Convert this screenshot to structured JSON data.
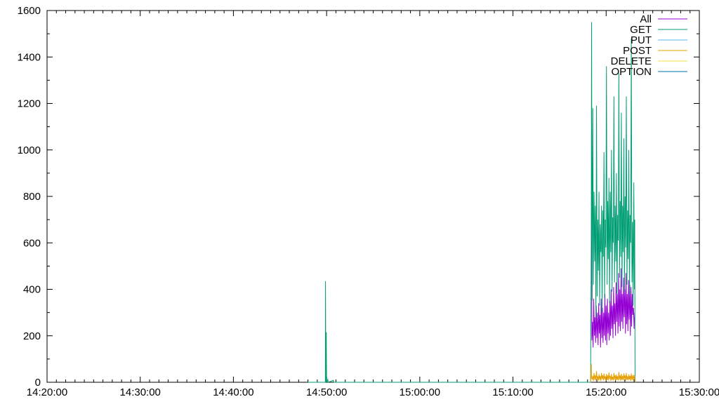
{
  "chart_data": {
    "type": "line",
    "title": "",
    "xlabel": "",
    "ylabel": "",
    "ylim": [
      0,
      1600
    ],
    "yticks": [
      0,
      200,
      400,
      600,
      800,
      1000,
      1200,
      1400,
      1600
    ],
    "xlim": [
      "14:20:00",
      "15:30:00"
    ],
    "xticks": [
      "14:20:00",
      "14:30:00",
      "14:40:00",
      "14:50:00",
      "15:00:00",
      "15:10:00",
      "15:20:00",
      "15:30:00"
    ],
    "grid": false,
    "legend_position": "top-right",
    "series": [
      {
        "name": "All",
        "color": "#9400d3",
        "values": [
          [
            "15:18:26",
            1010
          ],
          [
            "15:18:28",
            180
          ],
          [
            "15:18:32",
            260
          ],
          [
            "15:18:36",
            150
          ],
          [
            "15:18:40",
            360
          ],
          [
            "15:18:44",
            200
          ],
          [
            "15:18:48",
            280
          ],
          [
            "15:18:52",
            170
          ],
          [
            "15:18:56",
            330
          ],
          [
            "15:19:00",
            190
          ],
          [
            "15:19:04",
            300
          ],
          [
            "15:19:08",
            160
          ],
          [
            "15:19:12",
            340
          ],
          [
            "15:19:16",
            210
          ],
          [
            "15:19:20",
            290
          ],
          [
            "15:19:24",
            150
          ],
          [
            "15:19:28",
            360
          ],
          [
            "15:19:32",
            190
          ],
          [
            "15:19:36",
            320
          ],
          [
            "15:19:40",
            170
          ],
          [
            "15:19:44",
            300
          ],
          [
            "15:19:48",
            200
          ],
          [
            "15:19:52",
            380
          ],
          [
            "15:19:56",
            180
          ],
          [
            "15:20:00",
            330
          ],
          [
            "15:20:04",
            160
          ],
          [
            "15:20:08",
            360
          ],
          [
            "15:20:12",
            210
          ],
          [
            "15:20:16",
            300
          ],
          [
            "15:20:20",
            180
          ],
          [
            "15:20:24",
            350
          ],
          [
            "15:20:28",
            200
          ],
          [
            "15:20:32",
            400
          ],
          [
            "15:20:36",
            230
          ],
          [
            "15:20:40",
            330
          ],
          [
            "15:20:44",
            190
          ],
          [
            "15:20:48",
            410
          ],
          [
            "15:20:52",
            250
          ],
          [
            "15:20:56",
            340
          ],
          [
            "15:21:00",
            200
          ],
          [
            "15:21:04",
            430
          ],
          [
            "15:21:08",
            260
          ],
          [
            "15:21:12",
            380
          ],
          [
            "15:21:16",
            210
          ],
          [
            "15:21:20",
            470
          ],
          [
            "15:21:24",
            240
          ],
          [
            "15:21:28",
            400
          ],
          [
            "15:21:32",
            220
          ],
          [
            "15:21:36",
            490
          ],
          [
            "15:21:40",
            260
          ],
          [
            "15:21:44",
            380
          ],
          [
            "15:21:48",
            230
          ],
          [
            "15:21:52",
            450
          ],
          [
            "15:21:56",
            280
          ],
          [
            "15:22:00",
            400
          ],
          [
            "15:22:04",
            210
          ],
          [
            "15:22:08",
            470
          ],
          [
            "15:22:12",
            250
          ],
          [
            "15:22:16",
            380
          ],
          [
            "15:22:20",
            220
          ],
          [
            "15:22:24",
            440
          ],
          [
            "15:22:28",
            270
          ],
          [
            "15:22:32",
            420
          ],
          [
            "15:22:36",
            200
          ],
          [
            "15:22:40",
            410
          ],
          [
            "15:22:44",
            240
          ],
          [
            "15:22:48",
            380
          ],
          [
            "15:22:52",
            290
          ],
          [
            "15:22:56",
            320
          ],
          [
            "15:23:00",
            230
          ],
          [
            "15:23:04",
            300
          ]
        ]
      },
      {
        "name": "GET",
        "color": "#009e73",
        "values": [
          [
            "14:48:00",
            0
          ],
          [
            "14:49:52",
            0
          ],
          [
            "14:49:53",
            435
          ],
          [
            "14:49:55",
            0
          ],
          [
            "14:49:58",
            215
          ],
          [
            "14:50:00",
            0
          ],
          [
            "14:50:08",
            12
          ],
          [
            "14:50:10",
            0
          ],
          [
            "14:50:44",
            8
          ],
          [
            "14:50:46",
            0
          ],
          [
            "15:18:20",
            0
          ],
          [
            "15:18:24",
            600
          ],
          [
            "15:18:26",
            1550
          ],
          [
            "15:18:30",
            350
          ],
          [
            "15:18:34",
            1180
          ],
          [
            "15:18:38",
            420
          ],
          [
            "15:18:42",
            820
          ],
          [
            "15:18:46",
            520
          ],
          [
            "15:18:50",
            760
          ],
          [
            "15:18:54",
            280
          ],
          [
            "15:18:58",
            1190
          ],
          [
            "15:19:02",
            370
          ],
          [
            "15:19:06",
            700
          ],
          [
            "15:19:10",
            480
          ],
          [
            "15:19:14",
            820
          ],
          [
            "15:19:18",
            330
          ],
          [
            "15:19:22",
            680
          ],
          [
            "15:19:26",
            560
          ],
          [
            "15:19:30",
            760
          ],
          [
            "15:19:34",
            300
          ],
          [
            "15:19:38",
            740
          ],
          [
            "15:19:42",
            540
          ],
          [
            "15:19:46",
            990
          ],
          [
            "15:19:50",
            360
          ],
          [
            "15:19:54",
            700
          ],
          [
            "15:19:58",
            580
          ],
          [
            "15:20:02",
            1360
          ],
          [
            "15:20:06",
            420
          ],
          [
            "15:20:10",
            780
          ],
          [
            "15:20:14",
            530
          ],
          [
            "15:20:18",
            880
          ],
          [
            "15:20:22",
            340
          ],
          [
            "15:20:26",
            820
          ],
          [
            "15:20:30",
            560
          ],
          [
            "15:20:34",
            1000
          ],
          [
            "15:20:38",
            390
          ],
          [
            "15:20:42",
            710
          ],
          [
            "15:20:46",
            600
          ],
          [
            "15:20:50",
            1230
          ],
          [
            "15:20:54",
            430
          ],
          [
            "15:20:58",
            760
          ],
          [
            "15:21:02",
            520
          ],
          [
            "15:21:06",
            900
          ],
          [
            "15:21:10",
            380
          ],
          [
            "15:21:14",
            720
          ],
          [
            "15:21:18",
            610
          ],
          [
            "15:21:22",
            1330
          ],
          [
            "15:21:26",
            450
          ],
          [
            "15:21:30",
            780
          ],
          [
            "15:21:34",
            540
          ],
          [
            "15:21:38",
            1160
          ],
          [
            "15:21:42",
            410
          ],
          [
            "15:21:46",
            760
          ],
          [
            "15:21:50",
            560
          ],
          [
            "15:21:54",
            1050
          ],
          [
            "15:21:58",
            390
          ],
          [
            "15:22:02",
            800
          ],
          [
            "15:22:06",
            580
          ],
          [
            "15:22:10",
            1230
          ],
          [
            "15:22:14",
            420
          ],
          [
            "15:22:18",
            740
          ],
          [
            "15:22:22",
            530
          ],
          [
            "15:22:26",
            1000
          ],
          [
            "15:22:30",
            380
          ],
          [
            "15:22:34",
            720
          ],
          [
            "15:22:38",
            600
          ],
          [
            "15:22:42",
            1480
          ],
          [
            "15:22:46",
            430
          ],
          [
            "15:22:50",
            690
          ],
          [
            "15:22:54",
            330
          ],
          [
            "15:22:58",
            860
          ],
          [
            "15:23:02",
            400
          ],
          [
            "15:23:04",
            700
          ],
          [
            "15:23:06",
            0
          ]
        ]
      },
      {
        "name": "PUT",
        "color": "#56b4e9",
        "values": []
      },
      {
        "name": "POST",
        "color": "#e69f00",
        "values": [
          [
            "15:18:20",
            0
          ],
          [
            "15:18:24",
            80
          ],
          [
            "15:18:26",
            20
          ],
          [
            "15:18:30",
            12
          ],
          [
            "15:18:34",
            28
          ],
          [
            "15:18:38",
            5
          ],
          [
            "15:18:42",
            40
          ],
          [
            "15:18:46",
            10
          ],
          [
            "15:18:50",
            30
          ],
          [
            "15:18:54",
            8
          ],
          [
            "15:18:58",
            48
          ],
          [
            "15:19:02",
            12
          ],
          [
            "15:19:06",
            26
          ],
          [
            "15:19:10",
            6
          ],
          [
            "15:19:14",
            35
          ],
          [
            "15:19:18",
            10
          ],
          [
            "15:19:22",
            28
          ],
          [
            "15:19:26",
            5
          ],
          [
            "15:19:30",
            40
          ],
          [
            "15:19:34",
            14
          ],
          [
            "15:19:38",
            30
          ],
          [
            "15:19:42",
            8
          ],
          [
            "15:19:46",
            38
          ],
          [
            "15:19:50",
            12
          ],
          [
            "15:19:54",
            26
          ],
          [
            "15:19:58",
            6
          ],
          [
            "15:20:02",
            36
          ],
          [
            "15:20:06",
            10
          ],
          [
            "15:20:10",
            30
          ],
          [
            "15:20:14",
            8
          ],
          [
            "15:20:18",
            42
          ],
          [
            "15:20:22",
            14
          ],
          [
            "15:20:26",
            28
          ],
          [
            "15:20:30",
            6
          ],
          [
            "15:20:34",
            35
          ],
          [
            "15:20:38",
            10
          ],
          [
            "15:20:42",
            24
          ],
          [
            "15:20:46",
            8
          ],
          [
            "15:20:50",
            40
          ],
          [
            "15:20:54",
            12
          ],
          [
            "15:20:58",
            30
          ],
          [
            "15:21:02",
            6
          ],
          [
            "15:21:06",
            34
          ],
          [
            "15:21:10",
            10
          ],
          [
            "15:21:14",
            26
          ],
          [
            "15:21:18",
            8
          ],
          [
            "15:21:22",
            44
          ],
          [
            "15:21:26",
            12
          ],
          [
            "15:21:30",
            30
          ],
          [
            "15:21:34",
            6
          ],
          [
            "15:21:38",
            36
          ],
          [
            "15:21:42",
            10
          ],
          [
            "15:21:46",
            28
          ],
          [
            "15:21:50",
            8
          ],
          [
            "15:21:54",
            38
          ],
          [
            "15:21:58",
            14
          ],
          [
            "15:22:02",
            30
          ],
          [
            "15:22:06",
            6
          ],
          [
            "15:22:10",
            40
          ],
          [
            "15:22:14",
            10
          ],
          [
            "15:22:18",
            26
          ],
          [
            "15:22:22",
            8
          ],
          [
            "15:22:26",
            34
          ],
          [
            "15:22:30",
            12
          ],
          [
            "15:22:34",
            28
          ],
          [
            "15:22:38",
            6
          ],
          [
            "15:22:42",
            38
          ],
          [
            "15:22:46",
            10
          ],
          [
            "15:22:50",
            30
          ],
          [
            "15:22:54",
            8
          ],
          [
            "15:22:58",
            32
          ],
          [
            "15:23:02",
            12
          ],
          [
            "15:23:04",
            25
          ],
          [
            "15:23:06",
            0
          ]
        ]
      },
      {
        "name": "DELETE",
        "color": "#f0e442",
        "values": []
      },
      {
        "name": "OPTION",
        "color": "#0072b2",
        "values": []
      }
    ]
  }
}
